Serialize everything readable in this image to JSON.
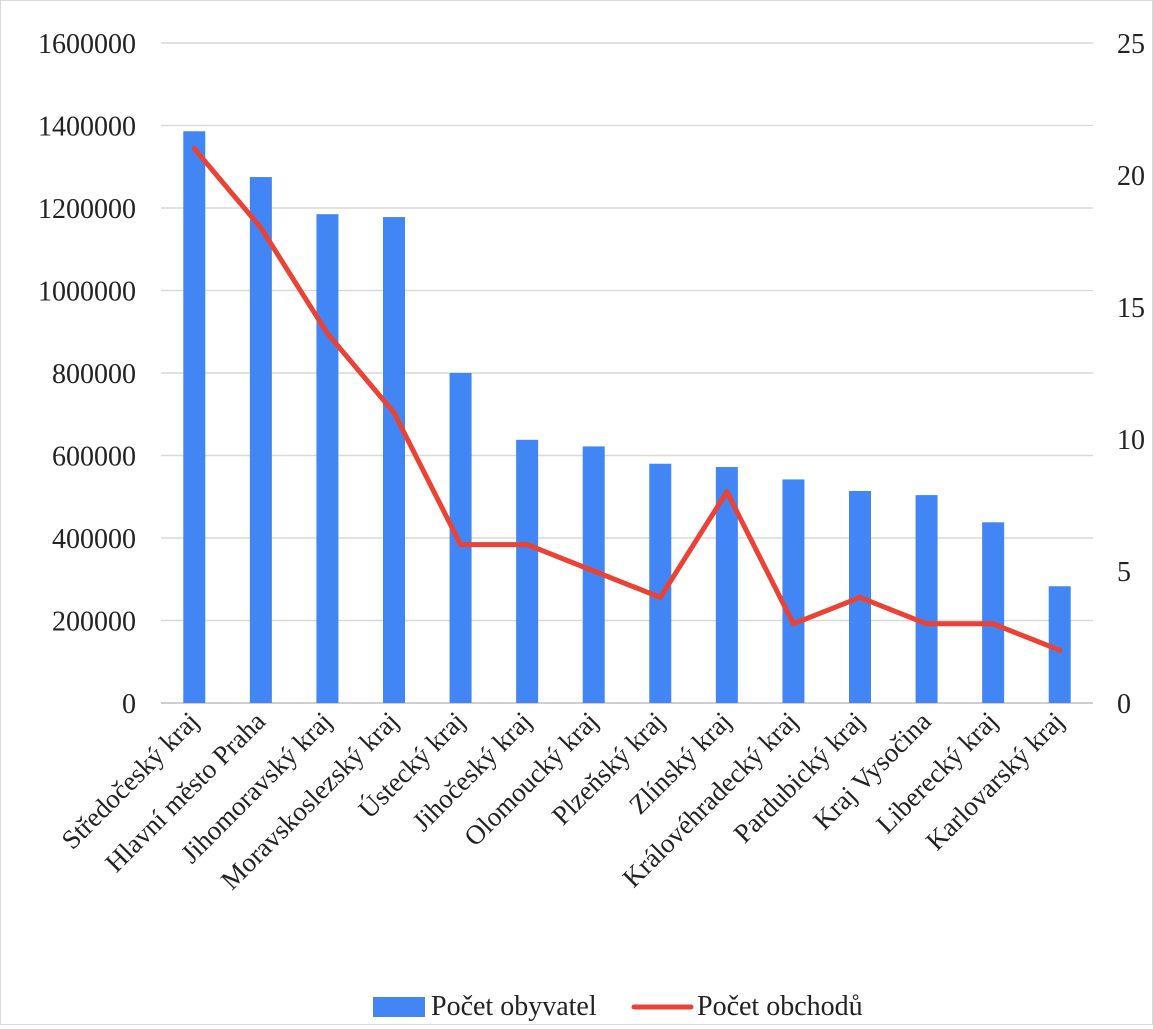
{
  "chart_data": {
    "type": "bar",
    "categories": [
      "Středočeský kraj",
      "Hlavní město Praha",
      "Jihomoravský kraj",
      "Moravskoslezský kraj",
      "Ústecký kraj",
      "Jihočeský kraj",
      "Olomoucký kraj",
      "Plzeňský kraj",
      "Zlínský kraj",
      "Královéhradecký kraj",
      "Pardubický kraj",
      "Kraj Vysočina",
      "Liberecký kraj",
      "Karlovarský kraj"
    ],
    "series": [
      {
        "name": "Počet obyvatel",
        "type": "bar",
        "axis": "left",
        "color": "#4285F4",
        "values": [
          1386000,
          1275000,
          1185000,
          1178000,
          800000,
          638000,
          622000,
          580000,
          572000,
          542000,
          514000,
          504000,
          438000,
          283000
        ]
      },
      {
        "name": "Počet obchodů",
        "type": "line",
        "axis": "right",
        "color": "#EA4335",
        "values": [
          21,
          18,
          14,
          11,
          6,
          6,
          5,
          4,
          8,
          3,
          4,
          3,
          3,
          2
        ]
      }
    ],
    "y_left": {
      "min": 0,
      "max": 1600000,
      "ticks": [
        "0",
        "200000",
        "400000",
        "600000",
        "800000",
        "1000000",
        "1200000",
        "1400000",
        "1600000"
      ]
    },
    "y_right": {
      "min": 0,
      "max": 25,
      "ticks": [
        "0",
        "5",
        "10",
        "15",
        "20",
        "25"
      ]
    },
    "grid": true,
    "legend_position": "bottom"
  }
}
